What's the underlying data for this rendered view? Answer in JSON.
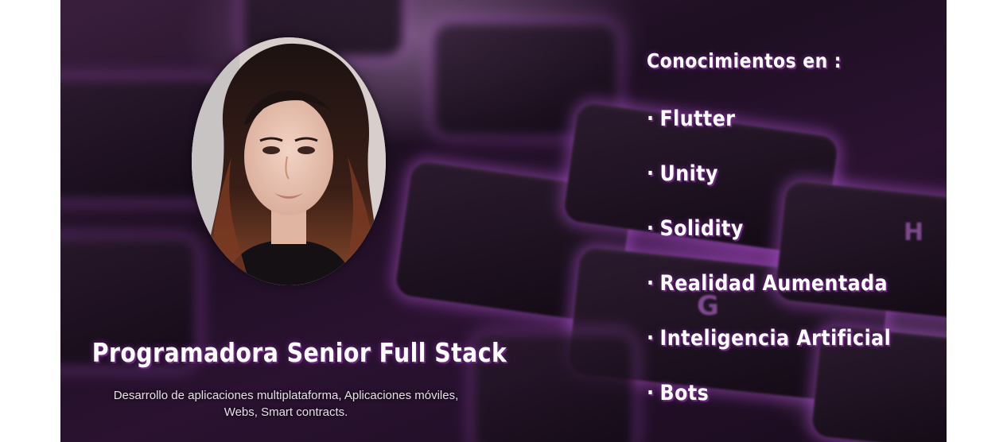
{
  "banner": {
    "profile": {
      "photo": "portrait-photo"
    },
    "role": {
      "title": "Programadora Senior Full Stack",
      "description_line1": "Desarrollo de aplicaciones multiplataforma, Aplicaciones móviles,",
      "description_line2": "Webs, Smart contracts."
    },
    "skills": {
      "title": "Conocimientos en :",
      "bullet": "·",
      "items": [
        "Flutter",
        "Unity",
        "Solidity",
        "Realidad Aumentada",
        "Inteligencia Artificial",
        "Bots"
      ]
    },
    "background": {
      "description_icon": "keyboard-background",
      "key_letters": [
        "G",
        "H"
      ]
    },
    "colors": {
      "accent": "#8a3aa6",
      "text": "#ffffff"
    }
  }
}
